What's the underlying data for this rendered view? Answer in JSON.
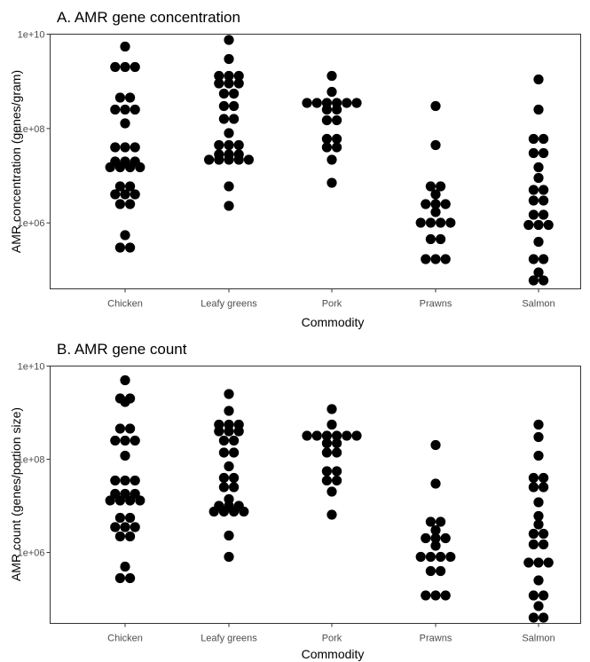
{
  "chart_data": [
    {
      "type": "scatter",
      "title": "A. AMR gene concentration",
      "xlabel": "Commodity",
      "ylabel": "AMR concentration (genes/gram)",
      "yscale": "log10",
      "ylim": [
        40000,
        10000000000
      ],
      "yticks": [
        {
          "value": 1000000,
          "label": "1e+06"
        },
        {
          "value": 100000000,
          "label": "1e+08"
        },
        {
          "value": 10000000000,
          "label": "1e+10"
        }
      ],
      "categories": [
        "Chicken",
        "Leafy greens",
        "Pork",
        "Prawns",
        "Salmon"
      ],
      "series": [
        {
          "category": "Chicken",
          "values": [
            5500000000,
            2000000000,
            2000000000,
            2000000000,
            450000000,
            450000000,
            250000000,
            250000000,
            250000000,
            130000000,
            40000000,
            40000000,
            40000000,
            20000000,
            20000000,
            20000000,
            15000000,
            15000000,
            15000000,
            15000000,
            6000000,
            6000000,
            4000000,
            4000000,
            4000000,
            2500000,
            2500000,
            550000,
            300000,
            300000
          ]
        },
        {
          "category": "Leafy greens",
          "values": [
            7500000000,
            3000000000,
            1300000000,
            1300000000,
            1300000000,
            900000000,
            900000000,
            900000000,
            550000000,
            550000000,
            300000000,
            300000000,
            160000000,
            160000000,
            80000000,
            45000000,
            45000000,
            45000000,
            28000000,
            28000000,
            28000000,
            22000000,
            22000000,
            22000000,
            22000000,
            22000000,
            6000000,
            2300000
          ]
        },
        {
          "category": "Pork",
          "values": [
            1300000000,
            600000000,
            350000000,
            350000000,
            350000000,
            350000000,
            350000000,
            350000000,
            250000000,
            250000000,
            150000000,
            150000000,
            60000000,
            60000000,
            40000000,
            40000000,
            22000000,
            7000000
          ]
        },
        {
          "category": "Prawns",
          "values": [
            300000000,
            45000000,
            6000000,
            6000000,
            4000000,
            2500000,
            2500000,
            2500000,
            1700000,
            1000000,
            1000000,
            1000000,
            1000000,
            450000,
            450000,
            170000,
            170000,
            170000
          ]
        },
        {
          "category": "Salmon",
          "values": [
            1100000000,
            250000000,
            60000000,
            60000000,
            30000000,
            30000000,
            15000000,
            9000000,
            5000000,
            5000000,
            3000000,
            3000000,
            1500000,
            1500000,
            900000,
            900000,
            900000,
            400000,
            170000,
            170000,
            90000,
            60000,
            60000
          ]
        }
      ]
    },
    {
      "type": "scatter",
      "title": "B. AMR gene count",
      "xlabel": "Commodity",
      "ylabel": "AMR count (genes/portion size)",
      "yscale": "log10",
      "ylim": [
        30000,
        10000000000
      ],
      "yticks": [
        {
          "value": 1000000,
          "label": "1e+06"
        },
        {
          "value": 100000000,
          "label": "1e+08"
        },
        {
          "value": 10000000000,
          "label": "1e+10"
        }
      ],
      "categories": [
        "Chicken",
        "Leafy greens",
        "Pork",
        "Prawns",
        "Salmon"
      ],
      "series": [
        {
          "category": "Chicken",
          "values": [
            5000000000,
            2000000000,
            2000000000,
            1700000000,
            450000000,
            450000000,
            250000000,
            250000000,
            250000000,
            120000000,
            35000000,
            35000000,
            35000000,
            18000000,
            18000000,
            18000000,
            13000000,
            13000000,
            13000000,
            13000000,
            5500000,
            5500000,
            3500000,
            3500000,
            3500000,
            2200000,
            2200000,
            500000,
            280000,
            280000
          ]
        },
        {
          "category": "Leafy greens",
          "values": [
            2500000000,
            1100000000,
            550000000,
            550000000,
            550000000,
            400000000,
            400000000,
            400000000,
            250000000,
            250000000,
            140000000,
            140000000,
            70000000,
            40000000,
            40000000,
            25000000,
            25000000,
            14000000,
            10000000,
            10000000,
            10000000,
            7500000,
            7500000,
            7500000,
            7500000,
            2300000,
            800000
          ]
        },
        {
          "category": "Pork",
          "values": [
            1200000000,
            550000000,
            320000000,
            320000000,
            320000000,
            320000000,
            320000000,
            320000000,
            220000000,
            220000000,
            140000000,
            140000000,
            55000000,
            55000000,
            35000000,
            35000000,
            20000000,
            6500000
          ]
        },
        {
          "category": "Prawns",
          "values": [
            200000000,
            30000000,
            4500000,
            4500000,
            3000000,
            2000000,
            2000000,
            2000000,
            1400000,
            800000,
            800000,
            800000,
            800000,
            400000,
            400000,
            120000,
            120000,
            120000
          ]
        },
        {
          "category": "Salmon",
          "values": [
            550000000,
            300000000,
            120000000,
            40000000,
            40000000,
            25000000,
            25000000,
            12000000,
            6000000,
            4000000,
            2500000,
            2500000,
            1500000,
            1500000,
            600000,
            600000,
            600000,
            250000,
            120000,
            120000,
            70000,
            40000,
            40000
          ]
        }
      ]
    }
  ],
  "colors": {
    "dot": "#000000",
    "tick_label": "#4d4d4d",
    "axis_line": "#333333",
    "background": "#ffffff"
  }
}
